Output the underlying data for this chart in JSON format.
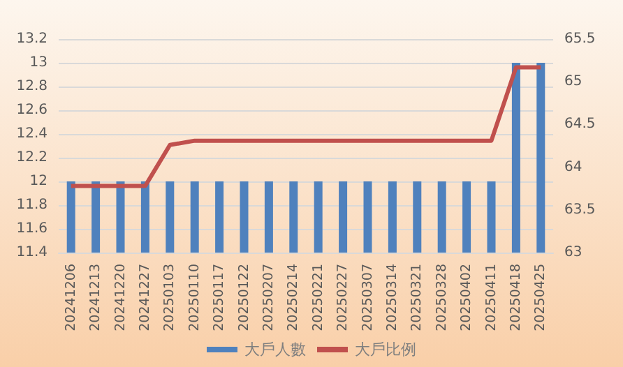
{
  "chart_data": {
    "type": "bar",
    "categories": [
      "20241206",
      "20241213",
      "20241220",
      "20241227",
      "20250103",
      "20250110",
      "20250117",
      "20250122",
      "20250207",
      "20250214",
      "20250221",
      "20250227",
      "20250307",
      "20250314",
      "20250321",
      "20250328",
      "20250402",
      "20250411",
      "20250418",
      "20250425"
    ],
    "series": [
      {
        "name": "大戶人數",
        "color": "#4f81bd",
        "values": [
          12,
          12,
          12,
          12,
          12,
          12,
          12,
          12,
          12,
          12,
          12,
          12,
          12,
          12,
          12,
          12,
          12,
          12,
          13,
          13
        ]
      },
      {
        "name": "大戶比例",
        "type": "line",
        "axis": "y2",
        "color": "#c0504d",
        "values": [
          63.78,
          63.78,
          63.78,
          63.78,
          64.26,
          64.31,
          64.31,
          64.31,
          64.31,
          64.31,
          64.31,
          64.31,
          64.31,
          64.31,
          64.31,
          64.31,
          64.31,
          64.31,
          65.17,
          65.17
        ]
      }
    ],
    "ylim": [
      11.4,
      13.2
    ],
    "yticks": [
      11.4,
      11.6,
      11.8,
      12,
      12.2,
      12.4,
      12.6,
      12.8,
      13,
      13.2
    ],
    "y2lim": [
      63,
      65.5
    ],
    "y2ticks": [
      63,
      63.5,
      64,
      64.5,
      65,
      65.5
    ],
    "grid": "y",
    "legend": "bottom",
    "marker": "none",
    "line_style": "solid"
  }
}
